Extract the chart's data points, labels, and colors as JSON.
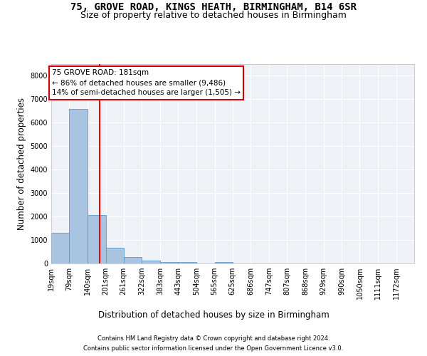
{
  "title_line1": "75, GROVE ROAD, KINGS HEATH, BIRMINGHAM, B14 6SR",
  "title_line2": "Size of property relative to detached houses in Birmingham",
  "xlabel": "Distribution of detached houses by size in Birmingham",
  "ylabel": "Number of detached properties",
  "footer_line1": "Contains HM Land Registry data © Crown copyright and database right 2024.",
  "footer_line2": "Contains public sector information licensed under the Open Government Licence v3.0.",
  "annotation_line1": "75 GROVE ROAD: 181sqm",
  "annotation_line2": "← 86% of detached houses are smaller (9,486)",
  "annotation_line3": "14% of semi-detached houses are larger (1,505) →",
  "bar_edges": [
    19,
    79,
    140,
    201,
    261,
    322,
    383,
    443,
    504,
    565,
    625,
    686,
    747,
    807,
    868,
    929,
    990,
    1050,
    1111,
    1172,
    1232
  ],
  "bar_heights": [
    1300,
    6600,
    2050,
    670,
    280,
    110,
    60,
    55,
    0,
    55,
    0,
    0,
    0,
    0,
    0,
    0,
    0,
    0,
    0,
    0
  ],
  "bar_color": "#a8c4e0",
  "bar_edge_color": "#5a9ac8",
  "red_line_x": 181,
  "ylim": [
    0,
    8500
  ],
  "yticks": [
    0,
    1000,
    2000,
    3000,
    4000,
    5000,
    6000,
    7000,
    8000
  ],
  "background_color": "#eef2f7",
  "grid_color": "#ffffff",
  "annotation_box_color": "#ffffff",
  "annotation_box_edge": "#cc0000",
  "title_fontsize": 10,
  "subtitle_fontsize": 9,
  "tick_label_fontsize": 7,
  "axis_label_fontsize": 8.5,
  "footer_fontsize": 6,
  "annotation_fontsize": 7.5
}
